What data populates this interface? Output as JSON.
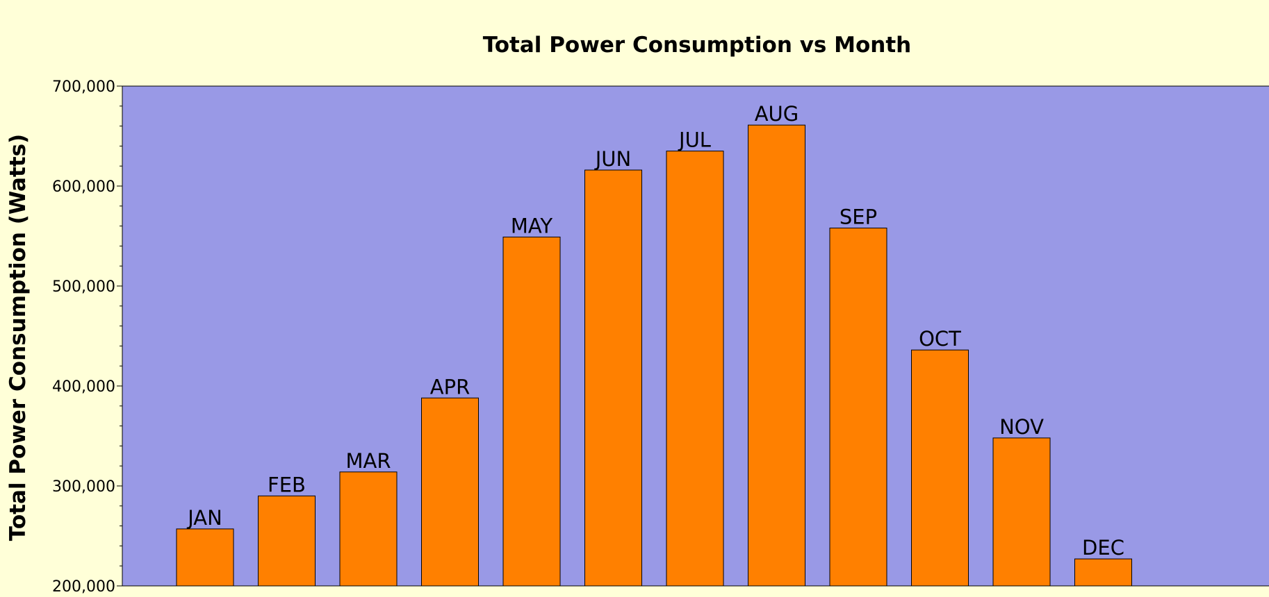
{
  "colors": {
    "background": "#ffffd8",
    "plot_area": "#9999e6",
    "bar_fill": "#ff8000",
    "bar_stroke": "#000000"
  },
  "chart_data": {
    "type": "bar",
    "title": "Total Power Consumption vs Month",
    "xlabel": "",
    "ylabel": "Total Power Consumption (Watts)",
    "categories": [
      "JAN",
      "FEB",
      "MAR",
      "APR",
      "MAY",
      "JUN",
      "JUL",
      "AUG",
      "SEP",
      "OCT",
      "NOV",
      "DEC"
    ],
    "values": [
      257000,
      290000,
      314000,
      388000,
      549000,
      616000,
      635000,
      661000,
      558000,
      436000,
      348000,
      227000
    ],
    "ylim": [
      200000,
      700000
    ],
    "yticks": [
      {
        "value": 200000,
        "label": "200,000"
      },
      {
        "value": 300000,
        "label": "300,000"
      },
      {
        "value": 400000,
        "label": "400,000"
      },
      {
        "value": 500000,
        "label": "500,000"
      },
      {
        "value": 600000,
        "label": "600,000"
      },
      {
        "value": 700000,
        "label": "700,000"
      }
    ],
    "minor_tick_step": 20000,
    "data_labels": "category-above-bar",
    "grid": false,
    "legend": "none"
  }
}
